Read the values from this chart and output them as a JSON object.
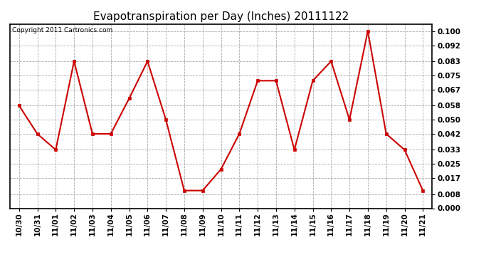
{
  "title": "Evapotranspiration per Day (Inches) 20111122",
  "copyright": "Copyright 2011 Cartronics.com",
  "labels": [
    "10/30",
    "10/31",
    "11/01",
    "11/02",
    "11/03",
    "11/04",
    "11/05",
    "11/06",
    "11/07",
    "11/08",
    "11/09",
    "11/10",
    "11/11",
    "11/12",
    "11/13",
    "11/14",
    "11/15",
    "11/16",
    "11/17",
    "11/18",
    "11/19",
    "11/20",
    "11/21"
  ],
  "values": [
    0.058,
    0.042,
    0.033,
    0.083,
    0.042,
    0.042,
    0.062,
    0.083,
    0.05,
    0.01,
    0.01,
    0.022,
    0.042,
    0.072,
    0.072,
    0.033,
    0.072,
    0.083,
    0.05,
    0.1,
    0.042,
    0.033,
    0.01
  ],
  "line_color": "#cc0000",
  "marker_color": "#cc0000",
  "bg_color": "#ffffff",
  "plot_bg_color": "#ffffff",
  "grid_color": "#aaaaaa",
  "ylim": [
    0.0,
    0.104
  ],
  "yticks": [
    0.0,
    0.008,
    0.017,
    0.025,
    0.033,
    0.042,
    0.05,
    0.058,
    0.067,
    0.075,
    0.083,
    0.092,
    0.1
  ],
  "title_fontsize": 11,
  "copyright_fontsize": 6.5,
  "tick_fontsize": 7.5
}
